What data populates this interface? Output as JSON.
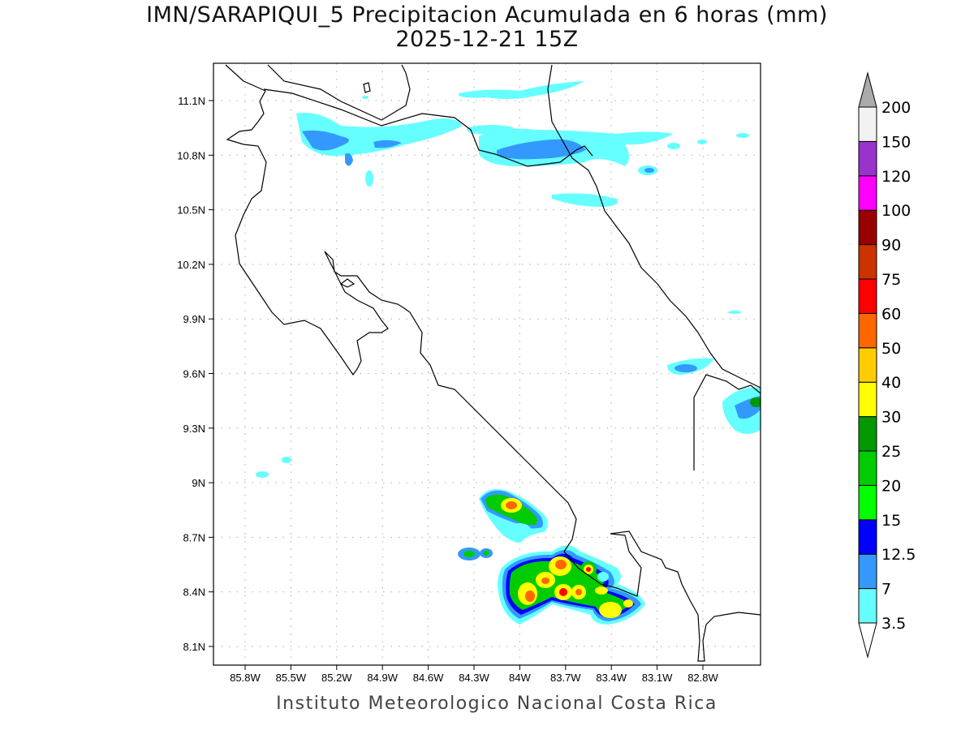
{
  "header": {
    "title": "IMN/SARAPIQUI_5 Precipitacion Acumulada en 6 horas (mm)",
    "subtitle": "2025-12-21 15Z"
  },
  "footer": "Instituto Meteorologico Nacional Costa Rica",
  "map": {
    "lat_labels": [
      "11.1N",
      "10.8N",
      "10.5N",
      "10.2N",
      "9.9N",
      "9.6N",
      "9.3N",
      "9N",
      "8.7N",
      "8.4N",
      "8.1N"
    ],
    "lon_labels": [
      "85.8W",
      "85.5W",
      "85.2W",
      "84.9W",
      "84.6W",
      "84.3W",
      "84W",
      "83.7W",
      "83.4W",
      "83.1W",
      "82.8W"
    ]
  },
  "colorbar": {
    "labels": [
      "3.5",
      "7",
      "12.5",
      "15",
      "20",
      "25",
      "30",
      "40",
      "50",
      "60",
      "75",
      "90",
      "100",
      "120",
      "150",
      "200"
    ],
    "colors": [
      "#66ffff",
      "#3399ff",
      "#0000ff",
      "#00ff00",
      "#00cc00",
      "#009900",
      "#ffff00",
      "#ffcc00",
      "#ff6600",
      "#ff0000",
      "#cc3300",
      "#990000",
      "#ff00ff",
      "#9933cc",
      "#f2f2f2"
    ],
    "under_color": "#ffffff",
    "over_color": "#aaaaaa"
  }
}
